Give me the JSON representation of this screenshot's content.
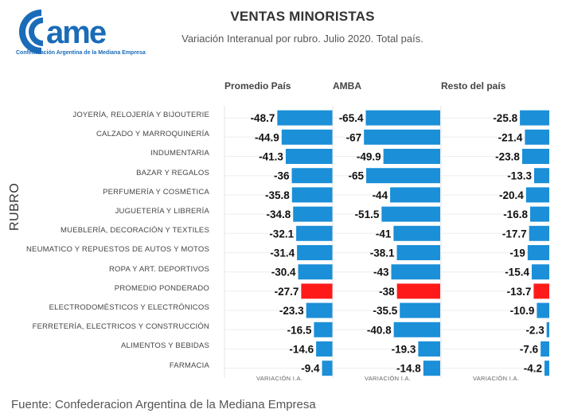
{
  "header": {
    "logo_text": "came",
    "logo_tagline": "Confederación Argentina de la Mediana Empresa",
    "title": "VENTAS MINORISTAS",
    "subtitle": "Variación Interanual por rubro. Julio 2020. Total país."
  },
  "footer": {
    "source": "Fuente: Confederacion Argentina de la Mediana Empresa"
  },
  "colors": {
    "bar": "#1b8fd8",
    "highlight": "#ff1a1a",
    "brand": "#1a6bb8"
  },
  "chart_data": {
    "type": "bar",
    "orientation": "horizontal",
    "title": "VENTAS MINORISTAS",
    "subtitle": "Variación Interanual por rubro. Julio 2020. Total país.",
    "ylabel": "RUBRO",
    "xlabel": "VARIACIÓN I.A.",
    "grid": false,
    "categories": [
      "JOYERÍA, RELOJERÍA Y BIJOUTERIE",
      "CALZADO Y MARROQUINERÍA",
      "INDUMENTARIA",
      "BAZAR Y REGALOS",
      "PERFUMERÍA Y COSMÉTICA",
      "JUGUETERÍA Y LIBRERÍA",
      "MUEBLERÍA, DECORACIÓN Y TEXTILES",
      "NEUMATICO Y REPUESTOS DE AUTOS Y MOTOS",
      "ROPA Y ART. DEPORTIVOS",
      "PROMEDIO PONDERADO",
      "ELECTRODOMÉSTICOS Y ELECTRÓNICOS",
      "FERRETERÍA, ELECTRICOS Y CONSTRUCCIÓN",
      "ALIMENTOS Y BEBIDAS",
      "FARMACIA"
    ],
    "highlight_category": "PROMEDIO PONDERADO",
    "series": [
      {
        "name": "Promedio País",
        "values": [
          -48.7,
          -44.9,
          -41.3,
          -36,
          -35.8,
          -34.8,
          -32.1,
          -31.4,
          -30.4,
          -27.7,
          -23.3,
          -16.5,
          -14.6,
          -9.4
        ]
      },
      {
        "name": "AMBA",
        "values": [
          -65.4,
          -67,
          -49.9,
          -65,
          -44,
          -51.5,
          -41,
          -38.1,
          -43,
          -38,
          -35.5,
          -40.8,
          -19.3,
          -14.8
        ]
      },
      {
        "name": "Resto del país",
        "values": [
          -25.8,
          -21.4,
          -23.8,
          -13.3,
          -20.4,
          -16.8,
          -17.7,
          -19,
          -15.4,
          -13.7,
          -10.9,
          -2.3,
          -7.6,
          -4.2
        ]
      }
    ],
    "axis_titles": [
      "VARIACIÓN I.A.",
      "VARIACIÓN I.A.",
      "VARIACIÓN I.A."
    ],
    "xlim": [
      -67,
      0
    ]
  }
}
